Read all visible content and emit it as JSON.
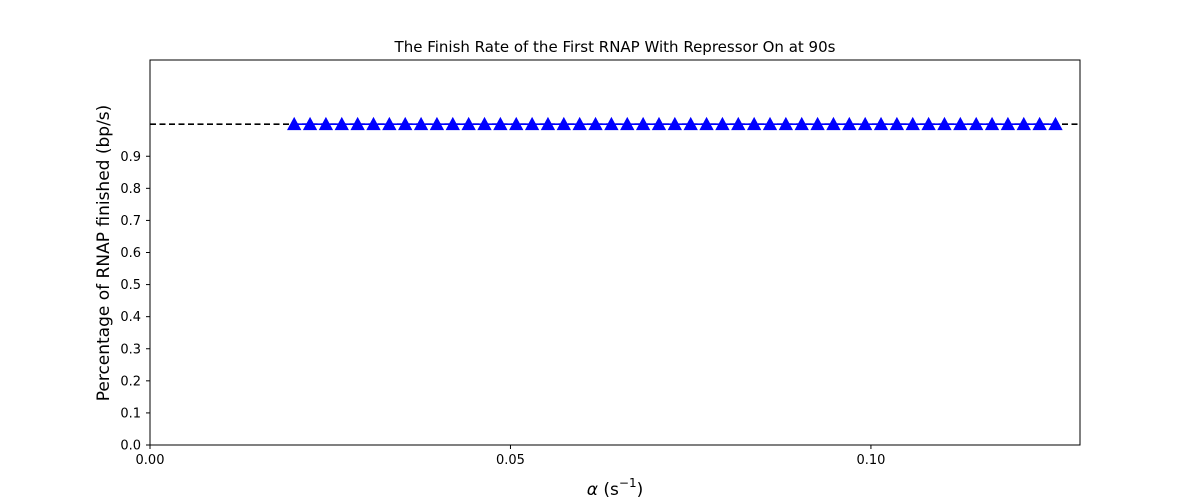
{
  "chart_data": {
    "type": "line",
    "title": "The Finish Rate of the First RNAP With Repressor On at 90s",
    "xlabel_symbol": "α",
    "xlabel_rest": " (s",
    "xlabel_sup": "−1",
    "xlabel_close": ")",
    "ylabel": "Percentage of RNAP finished (bp/s)",
    "xlim": [
      0.0,
      0.129
    ],
    "ylim": [
      0.0,
      1.2
    ],
    "xticks": [
      0.0,
      0.05,
      0.1
    ],
    "xtick_labels": [
      "0.00",
      "0.05",
      "0.10"
    ],
    "yticks": [
      0.0,
      0.1,
      0.2,
      0.3,
      0.4,
      0.5,
      0.6,
      0.7,
      0.8,
      0.9
    ],
    "ytick_labels": [
      "0.0",
      "0.1",
      "0.2",
      "0.3",
      "0.4",
      "0.5",
      "0.6",
      "0.7",
      "0.8",
      "0.9"
    ],
    "grid": false,
    "legend": "none",
    "reference_line": {
      "y": 1.0,
      "style": "dashed",
      "color": "#000000"
    },
    "series": [
      {
        "color": "#0000ff",
        "marker": "triangle-up",
        "x": [
          0.02,
          0.0222,
          0.0244,
          0.0266,
          0.0288,
          0.031,
          0.0332,
          0.0354,
          0.0376,
          0.0398,
          0.042,
          0.0442,
          0.0464,
          0.0486,
          0.0508,
          0.053,
          0.0552,
          0.0574,
          0.0596,
          0.0618,
          0.064,
          0.0662,
          0.0684,
          0.0706,
          0.0728,
          0.075,
          0.0772,
          0.0794,
          0.0816,
          0.0838,
          0.086,
          0.0882,
          0.0904,
          0.0926,
          0.0948,
          0.097,
          0.0992,
          0.1014,
          0.1036,
          0.1058,
          0.108,
          0.1102,
          0.1124,
          0.1146,
          0.1168,
          0.119,
          0.1212,
          0.1234,
          0.1256
        ],
        "values": [
          1,
          1,
          1,
          1,
          1,
          1,
          1,
          1,
          1,
          1,
          1,
          1,
          1,
          1,
          1,
          1,
          1,
          1,
          1,
          1,
          1,
          1,
          1,
          1,
          1,
          1,
          1,
          1,
          1,
          1,
          1,
          1,
          1,
          1,
          1,
          1,
          1,
          1,
          1,
          1,
          1,
          1,
          1,
          1,
          1,
          1,
          1,
          1,
          1
        ]
      }
    ]
  }
}
